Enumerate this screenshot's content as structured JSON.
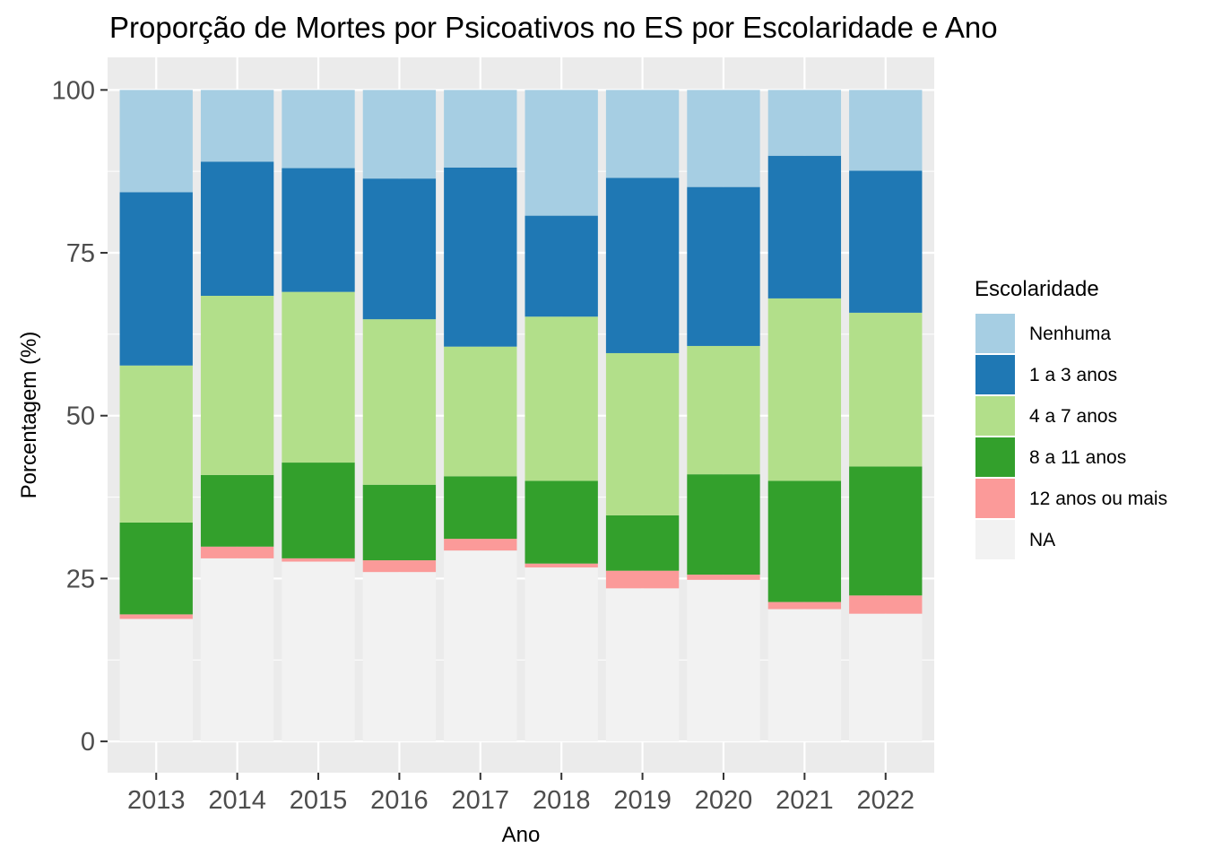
{
  "chart_data": {
    "type": "bar",
    "stacked": true,
    "title": "Proporção de Mortes por Psicoativos no ES por Escolaridade e Ano",
    "xlabel": "Ano",
    "ylabel": "Porcentagem (%)",
    "ylim": [
      0,
      105
    ],
    "yticks": [
      0,
      25,
      50,
      75,
      100
    ],
    "grid": true,
    "categories": [
      "2013",
      "2014",
      "2015",
      "2016",
      "2017",
      "2018",
      "2019",
      "2020",
      "2021",
      "2022"
    ],
    "legend": {
      "title": "Escolaridade",
      "position": "right"
    },
    "series": [
      {
        "name": "NA",
        "color": "#F2F2F2",
        "values": [
          18.8,
          28.1,
          27.6,
          26.0,
          29.3,
          26.7,
          23.5,
          24.8,
          20.3,
          19.6
        ]
      },
      {
        "name": "12 anos ou mais",
        "color": "#FB9A99",
        "values": [
          0.7,
          1.8,
          0.5,
          1.8,
          1.8,
          0.6,
          2.7,
          0.8,
          1.1,
          2.8
        ]
      },
      {
        "name": "8 a 11 anos",
        "color": "#33A02C",
        "values": [
          14.1,
          11.0,
          14.7,
          11.6,
          9.6,
          12.7,
          8.5,
          15.4,
          18.6,
          19.8
        ]
      },
      {
        "name": "4 a 7 anos",
        "color": "#B2DF8A",
        "values": [
          24.1,
          27.5,
          26.2,
          25.4,
          19.9,
          25.2,
          24.9,
          19.7,
          28.0,
          23.6
        ]
      },
      {
        "name": "1 a 3 anos",
        "color": "#1F78B4",
        "values": [
          26.6,
          20.6,
          19.0,
          21.6,
          27.5,
          15.5,
          26.9,
          24.4,
          21.9,
          21.8
        ]
      },
      {
        "name": "Nenhuma",
        "color": "#A6CEE3",
        "values": [
          15.7,
          11.0,
          12.0,
          13.6,
          11.9,
          19.3,
          13.5,
          14.9,
          10.1,
          12.4
        ]
      }
    ],
    "legend_order": [
      "Nenhuma",
      "1 a 3 anos",
      "4 a 7 anos",
      "8 a 11 anos",
      "12 anos ou mais",
      "NA"
    ]
  }
}
